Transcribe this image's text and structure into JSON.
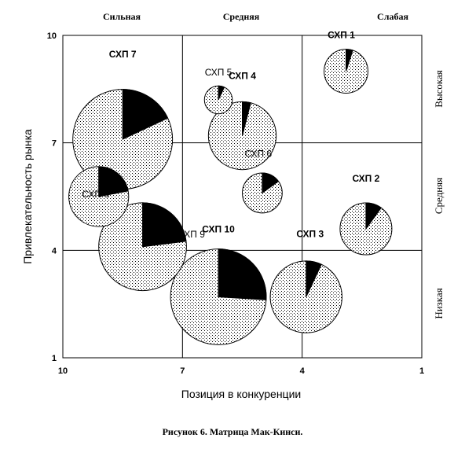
{
  "chart_data": {
    "type": "bubble",
    "title": "",
    "caption": "Рисунок 6. Матрица Мак-Кинси.",
    "xlabel": "Позиция в конкуренции",
    "ylabel": "Привлекательность рынка",
    "xlim": [
      10,
      1
    ],
    "ylim": [
      1,
      10
    ],
    "x_reversed": true,
    "xticks": [
      "10",
      "7",
      "4",
      "1"
    ],
    "yticks": [
      "10",
      "7",
      "4",
      "1"
    ],
    "grid": true,
    "top_zones": [
      "Сильная",
      "Средняя",
      "Слабая"
    ],
    "right_zones": [
      "Высокая",
      "Средняя",
      "Низкая"
    ],
    "bubble_fill": "dotted",
    "share_color": "#000000",
    "bubbles": [
      {
        "label": "СХП 1",
        "x": 2.9,
        "y": 9.0,
        "size": 0.55,
        "share": 0.05
      },
      {
        "label": "СХП 2",
        "x": 2.4,
        "y": 4.6,
        "size": 0.65,
        "share": 0.1
      },
      {
        "label": "СХП 3",
        "x": 3.9,
        "y": 2.7,
        "size": 0.9,
        "share": 0.07
      },
      {
        "label": "СХП 4",
        "x": 5.5,
        "y": 7.2,
        "size": 0.85,
        "share": 0.04
      },
      {
        "label": "СХП 5",
        "x": 6.1,
        "y": 8.2,
        "size": 0.35,
        "share": 0.07
      },
      {
        "label": "СХП 6",
        "x": 5.0,
        "y": 5.6,
        "size": 0.5,
        "share": 0.15
      },
      {
        "label": "СХП 7",
        "x": 8.5,
        "y": 7.1,
        "size": 1.25,
        "share": 0.18
      },
      {
        "label": "СХП 8",
        "x": 9.1,
        "y": 5.5,
        "size": 0.75,
        "share": 0.22
      },
      {
        "label": "СХП 9",
        "x": 8.0,
        "y": 4.1,
        "size": 1.1,
        "share": 0.23
      },
      {
        "label": "СХП 10",
        "x": 6.1,
        "y": 2.7,
        "size": 1.2,
        "share": 0.26
      }
    ]
  }
}
